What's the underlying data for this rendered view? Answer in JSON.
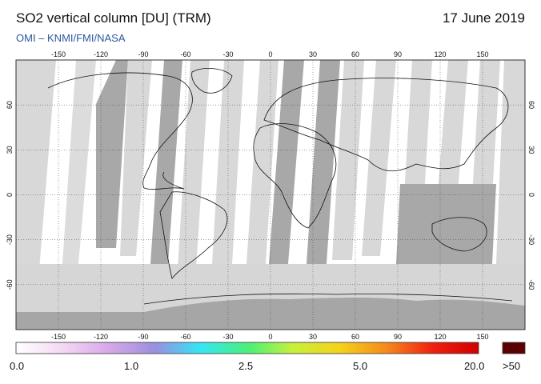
{
  "header": {
    "title": "SO2 vertical column [DU] (TRM)",
    "date": "17 June 2019",
    "subtitle": "OMI  –  KNMI/FMI/NASA"
  },
  "map": {
    "projection": "equirectangular",
    "lon_range": [
      -180,
      180
    ],
    "lat_range": [
      -90,
      90
    ],
    "lon_ticks": [
      "-150",
      "-120",
      "-90",
      "-60",
      "-30",
      "0",
      "30",
      "60",
      "90",
      "120",
      "150"
    ],
    "lat_ticks": [
      "60",
      "30",
      "0",
      "-30",
      "-60"
    ],
    "colors": {
      "no_data_gray": "#a6a6a6",
      "light_gray": "#d6d6d6",
      "background": "#ffffff"
    }
  },
  "colorbar": {
    "labels": [
      "0.0",
      "1.0",
      "2.5",
      "5.0",
      "20.0",
      ">50"
    ],
    "overflow_color": "#5a0000",
    "gradient_stops": [
      "#ffffff",
      "#f3d9f3",
      "#d9a8e8",
      "#9a8fe0",
      "#35e6f5",
      "#48f07a",
      "#c8f03a",
      "#f5d21a",
      "#f58a1c",
      "#f02010",
      "#d00000"
    ]
  }
}
